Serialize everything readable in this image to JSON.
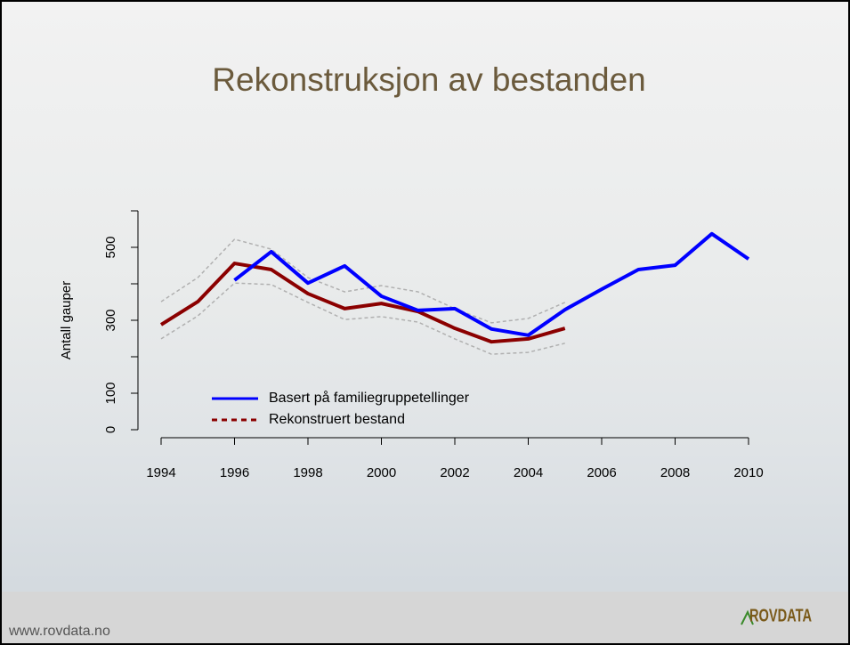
{
  "chart_data": {
    "type": "line",
    "title": "Rekonstruksjon av bestanden",
    "y_label": "Antall gauper",
    "x": [
      1994,
      1995,
      1996,
      1997,
      1998,
      1999,
      2000,
      2001,
      2002,
      2003,
      2004,
      2005,
      2006,
      2007,
      2008,
      2009,
      2010
    ],
    "series": [
      {
        "name": "Basert på familiegruppetellinger",
        "color": "#0000ff",
        "dash": false,
        "values": [
          null,
          null,
          410,
          488,
          402,
          449,
          366,
          327,
          332,
          276,
          259,
          329,
          385,
          439,
          451,
          537,
          468
        ]
      },
      {
        "name": "Rekonstruert bestand",
        "color": "#8b0000",
        "dash": true,
        "values": [
          288,
          351,
          456,
          439,
          373,
          332,
          346,
          324,
          278,
          241,
          249,
          278,
          null,
          null,
          null,
          null,
          null
        ]
      },
      {
        "color": "#b0b0b0",
        "dash": true,
        "values": [
          351,
          417,
          522,
          495,
          417,
          378,
          395,
          378,
          332,
          293,
          305,
          349,
          null,
          null,
          null,
          null,
          null
        ]
      },
      {
        "color": "#b0b0b0",
        "dash": true,
        "values": [
          249,
          312,
          402,
          398,
          349,
          302,
          310,
          295,
          249,
          207,
          212,
          237,
          null,
          null,
          null,
          null,
          null
        ]
      }
    ],
    "xlim": [
      1994,
      2010
    ],
    "xticks": [
      1994,
      1996,
      1998,
      2000,
      2002,
      2004,
      2006,
      2008,
      2010
    ],
    "ylim": [
      0,
      600
    ],
    "yticks": [
      0,
      100,
      300,
      500
    ],
    "yticks_unlabeled": [
      200,
      400,
      600
    ]
  },
  "footer": {
    "url": "www.rovdata.no",
    "logo": "ROVDATA"
  }
}
